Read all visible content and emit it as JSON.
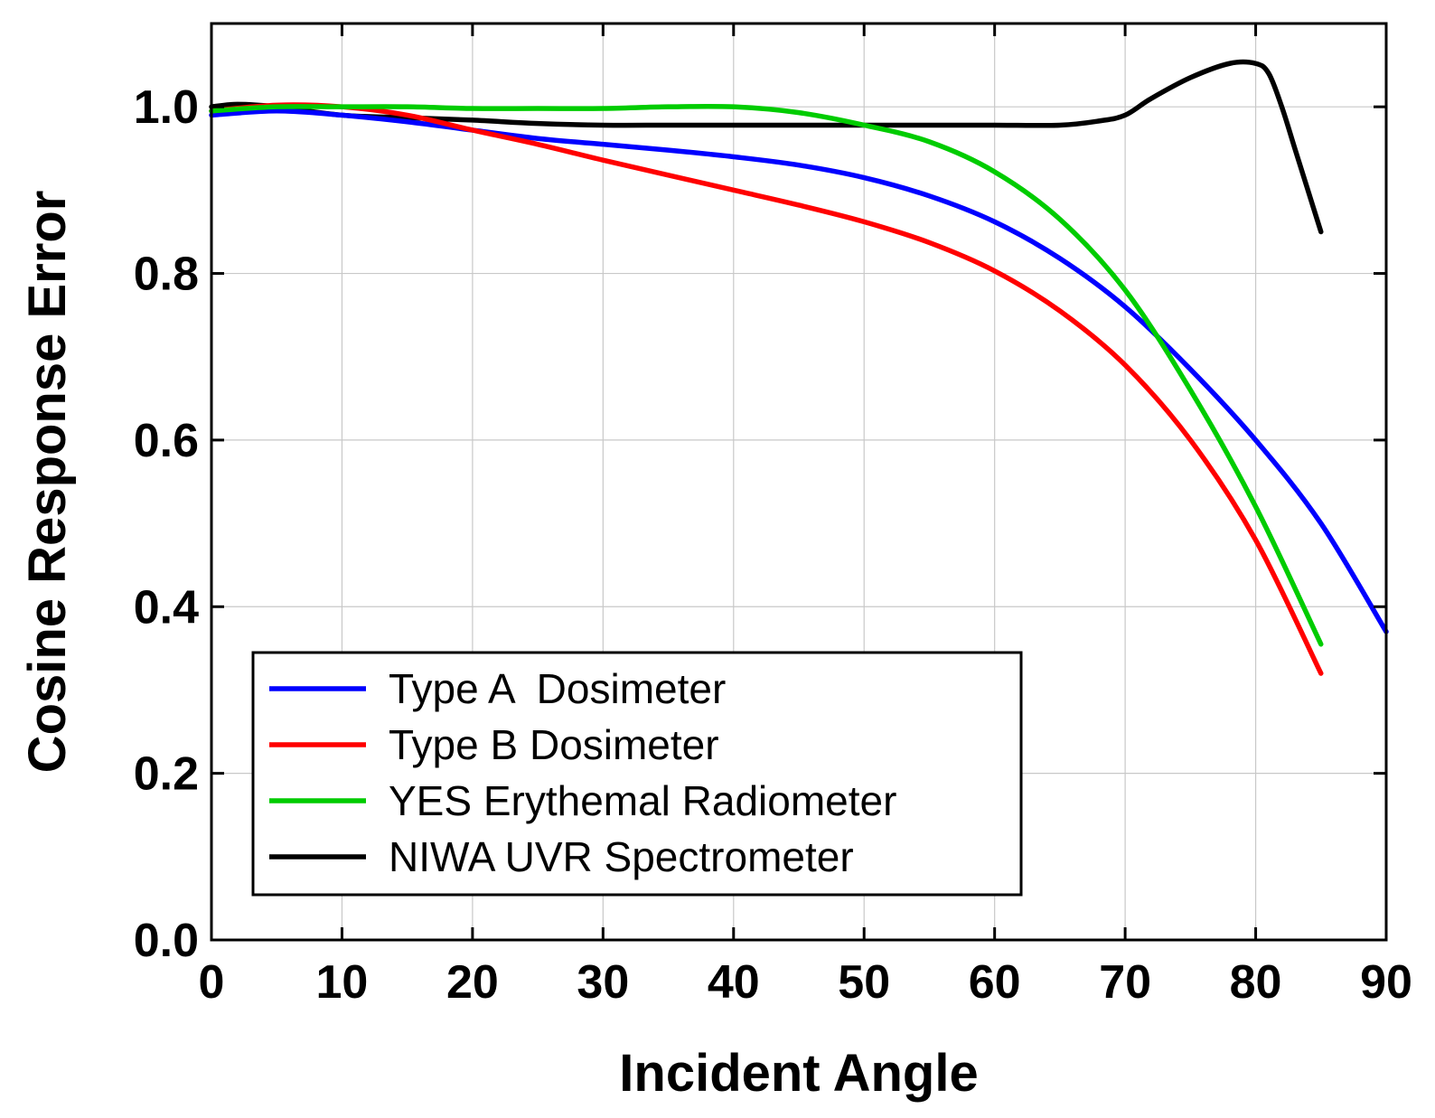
{
  "chart_data": {
    "type": "line",
    "title": "",
    "xlabel": "Incident Angle",
    "ylabel": "Cosine Response Error",
    "xlim": [
      0,
      90
    ],
    "ylim": [
      0,
      1.1
    ],
    "xticks": [
      "0",
      "10",
      "20",
      "30",
      "40",
      "50",
      "60",
      "70",
      "80",
      "90"
    ],
    "yticks": [
      "0.0",
      "0.2",
      "0.4",
      "0.6",
      "0.8",
      "1.0"
    ],
    "grid": true,
    "legend_position": "bottom-left",
    "series": [
      {
        "name": "Type A  Dosimeter",
        "color": "#0000ff",
        "x": [
          0,
          5,
          10,
          15,
          20,
          25,
          30,
          35,
          40,
          45,
          50,
          55,
          60,
          65,
          70,
          75,
          80,
          85,
          90
        ],
        "y": [
          0.99,
          0.995,
          0.99,
          0.982,
          0.972,
          0.962,
          0.955,
          0.948,
          0.94,
          0.93,
          0.915,
          0.893,
          0.862,
          0.818,
          0.76,
          0.685,
          0.6,
          0.5,
          0.37
        ]
      },
      {
        "name": "Type B Dosimeter",
        "color": "#ff0000",
        "x": [
          0,
          5,
          10,
          15,
          20,
          25,
          30,
          35,
          40,
          45,
          50,
          55,
          60,
          65,
          70,
          75,
          80,
          85
        ],
        "y": [
          0.995,
          1.002,
          1.0,
          0.99,
          0.972,
          0.955,
          0.936,
          0.918,
          0.9,
          0.882,
          0.862,
          0.837,
          0.803,
          0.755,
          0.69,
          0.6,
          0.48,
          0.32
        ]
      },
      {
        "name": "YES Erythemal Radiometer",
        "color": "#00cc00",
        "x": [
          0,
          5,
          10,
          15,
          20,
          25,
          30,
          35,
          40,
          45,
          50,
          55,
          60,
          65,
          70,
          75,
          80,
          85
        ],
        "y": [
          0.995,
          1.0,
          1.0,
          1.0,
          0.998,
          0.998,
          0.998,
          1.0,
          1.0,
          0.993,
          0.978,
          0.958,
          0.922,
          0.865,
          0.78,
          0.66,
          0.52,
          0.355
        ]
      },
      {
        "name": "NIWA UVR Spectrometer",
        "color": "#000000",
        "x": [
          0,
          2,
          5,
          10,
          15,
          20,
          25,
          30,
          35,
          40,
          45,
          50,
          55,
          60,
          65,
          68,
          70,
          72,
          75,
          78,
          80,
          81,
          82,
          83,
          84,
          85
        ],
        "y": [
          1.0,
          1.003,
          1.0,
          0.99,
          0.987,
          0.984,
          0.98,
          0.978,
          0.978,
          0.978,
          0.978,
          0.978,
          0.978,
          0.978,
          0.978,
          0.983,
          0.99,
          1.01,
          1.035,
          1.052,
          1.052,
          1.04,
          1.0,
          0.95,
          0.9,
          0.85
        ]
      }
    ]
  }
}
